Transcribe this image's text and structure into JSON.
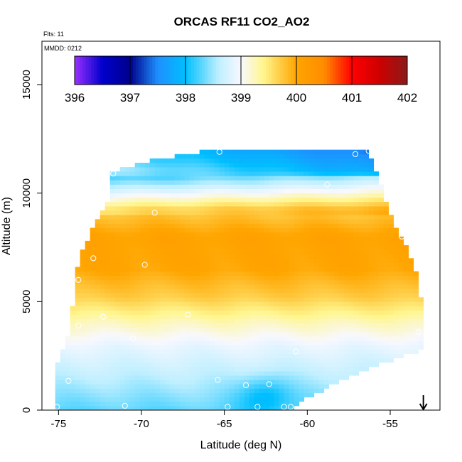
{
  "chart_data": {
    "type": "heatmap",
    "title": "ORCAS RF11 CO2_AO2",
    "annotations": {
      "flights": "Flts: 11",
      "date": "MMDD: 0212"
    },
    "xlabel": "Latitude (deg N)",
    "ylabel": "Altitude (m)",
    "xlim": [
      -76,
      -52
    ],
    "ylim": [
      0,
      17000
    ],
    "x_ticks": [
      -75,
      -70,
      -65,
      -60,
      -55
    ],
    "x_tick_labels": [
      "-75",
      "-70",
      "-65",
      "-60",
      "-55"
    ],
    "y_ticks": [
      0,
      5000,
      10000,
      15000
    ],
    "y_tick_labels": [
      "0",
      "5000",
      "10000",
      "15000"
    ],
    "colorbar": {
      "min": 396,
      "max": 402,
      "ticks": [
        396,
        397,
        398,
        399,
        400,
        401,
        402
      ],
      "tick_labels": [
        "396",
        "397",
        "398",
        "399",
        "400",
        "401",
        "402"
      ],
      "stops": [
        {
          "v": 396.0,
          "c": "#9B30FF"
        },
        {
          "v": 396.5,
          "c": "#0000CD"
        },
        {
          "v": 397.0,
          "c": "#00008B"
        },
        {
          "v": 397.5,
          "c": "#1E90FF"
        },
        {
          "v": 398.0,
          "c": "#00BFFF"
        },
        {
          "v": 398.6,
          "c": "#BFEFFF"
        },
        {
          "v": 399.0,
          "c": "#F8F8FF"
        },
        {
          "v": 399.4,
          "c": "#FFF68F"
        },
        {
          "v": 400.0,
          "c": "#FFA500"
        },
        {
          "v": 400.5,
          "c": "#FF8C00"
        },
        {
          "v": 401.0,
          "c": "#FF0000"
        },
        {
          "v": 401.5,
          "c": "#CD0000"
        },
        {
          "v": 402.0,
          "c": "#8B1A1A"
        }
      ]
    },
    "field": {
      "lat_range": [
        -75.2,
        -53
      ],
      "alt_range": [
        0,
        12000
      ],
      "upper_envelope": [
        [
          -75.2,
          1900
        ],
        [
          -74.5,
          3200
        ],
        [
          -74,
          5500
        ],
        [
          -73.8,
          7000
        ],
        [
          -73,
          8300
        ],
        [
          -71.5,
          10200
        ],
        [
          -71.8,
          11000
        ],
        [
          -69,
          11600
        ],
        [
          -65.5,
          12000
        ],
        [
          -56.5,
          12000
        ],
        [
          -55.8,
          11000
        ],
        [
          -55,
          9000
        ],
        [
          -54,
          7500
        ],
        [
          -53.2,
          5800
        ],
        [
          -53,
          3500
        ]
      ],
      "lower_envelope": [
        [
          -75.2,
          0
        ],
        [
          -61,
          0
        ],
        [
          -60,
          600
        ],
        [
          -58,
          1300
        ],
        [
          -56,
          2000
        ],
        [
          -53,
          2800
        ]
      ],
      "profile": [
        {
          "alt": 0,
          "v": 398.3
        },
        {
          "alt": 1500,
          "v": 398.6
        },
        {
          "alt": 3000,
          "v": 398.9
        },
        {
          "alt": 4200,
          "v": 399.3
        },
        {
          "alt": 5200,
          "v": 399.7
        },
        {
          "alt": 6500,
          "v": 400.0
        },
        {
          "alt": 8000,
          "v": 400.05
        },
        {
          "alt": 9300,
          "v": 399.7
        },
        {
          "alt": 10000,
          "v": 399.0
        },
        {
          "alt": 10800,
          "v": 398.3
        },
        {
          "alt": 12000,
          "v": 397.8
        }
      ]
    },
    "sample_points": [
      {
        "lat": -75.1,
        "alt": 150
      },
      {
        "lat": -74.4,
        "alt": 1350
      },
      {
        "lat": -73.8,
        "alt": 3900
      },
      {
        "lat": -73.8,
        "alt": 6000
      },
      {
        "lat": -73.6,
        "alt": 7600
      },
      {
        "lat": -72.9,
        "alt": 7000
      },
      {
        "lat": -72.3,
        "alt": 4300
      },
      {
        "lat": -71.7,
        "alt": 10900
      },
      {
        "lat": -71.0,
        "alt": 200
      },
      {
        "lat": -70.5,
        "alt": 3300
      },
      {
        "lat": -69.8,
        "alt": 6700
      },
      {
        "lat": -69.2,
        "alt": 9100
      },
      {
        "lat": -67.2,
        "alt": 4400
      },
      {
        "lat": -65.4,
        "alt": 1400
      },
      {
        "lat": -65.3,
        "alt": 11900
      },
      {
        "lat": -64.8,
        "alt": 150
      },
      {
        "lat": -63.7,
        "alt": 1150
      },
      {
        "lat": -63.0,
        "alt": 150
      },
      {
        "lat": -62.3,
        "alt": 1200
      },
      {
        "lat": -61.4,
        "alt": 150
      },
      {
        "lat": -61.0,
        "alt": 150
      },
      {
        "lat": -60.7,
        "alt": 2700
      },
      {
        "lat": -58.8,
        "alt": 10400
      },
      {
        "lat": -57.1,
        "alt": 11800
      },
      {
        "lat": -56.3,
        "alt": 11950
      },
      {
        "lat": -54.3,
        "alt": 8000
      },
      {
        "lat": -53.3,
        "alt": 3600
      }
    ],
    "arrow_lat": -53
  }
}
